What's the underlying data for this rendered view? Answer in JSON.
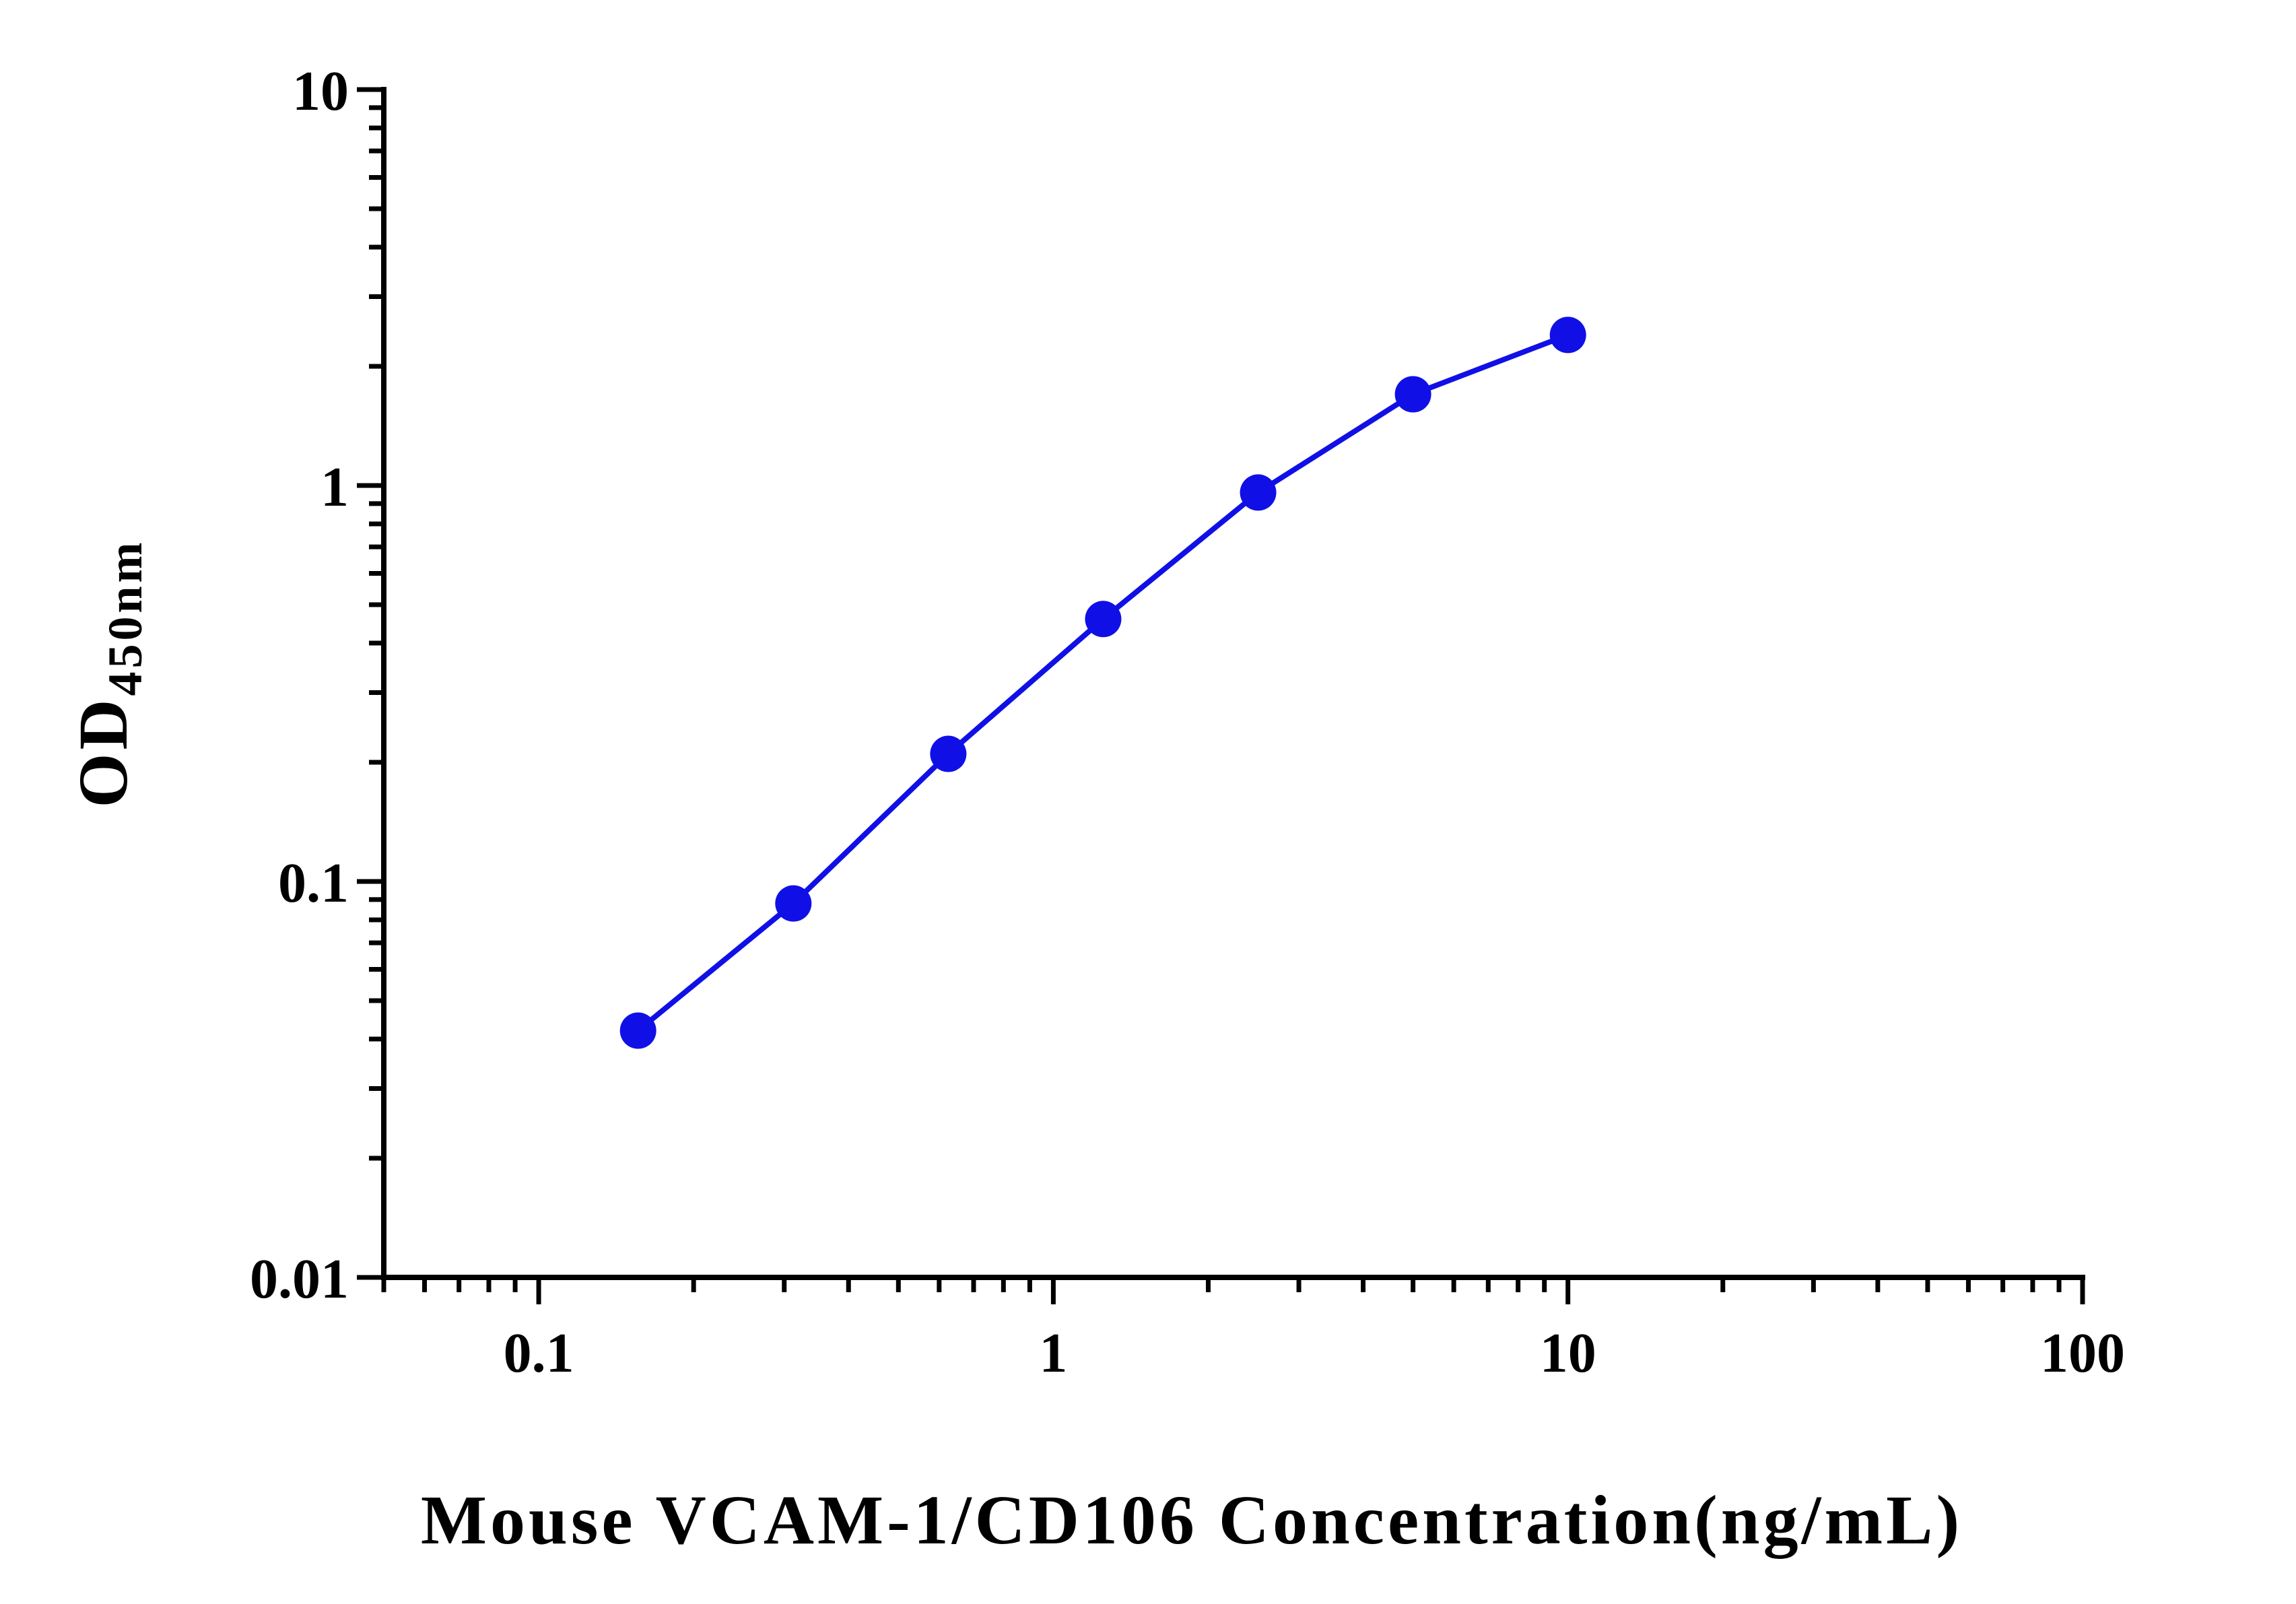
{
  "chart_data": {
    "type": "line",
    "title": "",
    "xlabel": "Mouse VCAM-1/CD106 Concentration(ng/mL)",
    "ylabel_main": "OD",
    "ylabel_sub": "450nm",
    "x_scale": "log",
    "y_scale": "log",
    "xlim": [
      0.05,
      100
    ],
    "ylim": [
      0.01,
      10
    ],
    "x_tick_labels": [
      "0.1",
      "1",
      "10",
      "100"
    ],
    "y_tick_labels": [
      "0.01",
      "0.1",
      "1",
      "10"
    ],
    "grid": false,
    "legend": "none",
    "series": [
      {
        "color": "#1010e6",
        "marker": "circle",
        "x": [
          0.156,
          0.3125,
          0.625,
          1.25,
          2.5,
          5,
          10
        ],
        "y": [
          0.042,
          0.088,
          0.21,
          0.46,
          0.96,
          1.7,
          2.4
        ]
      }
    ]
  }
}
